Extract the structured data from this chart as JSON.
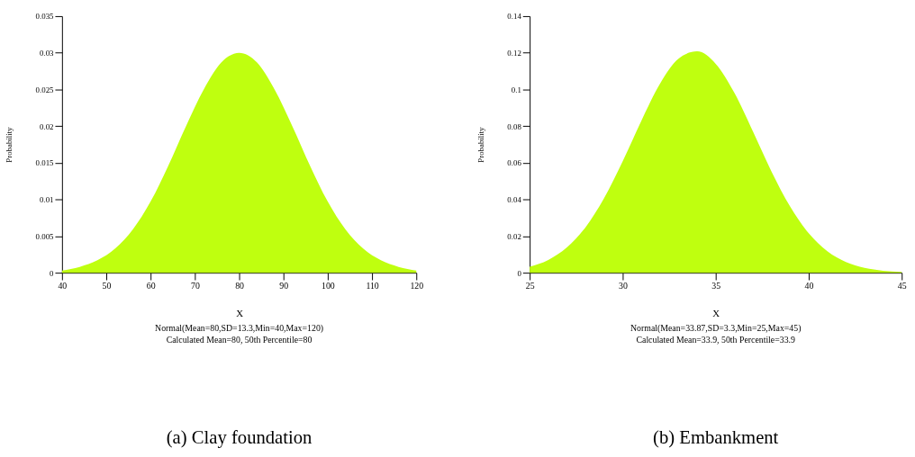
{
  "chart_data": [
    {
      "type": "area",
      "title": "(a)  Clay foundation",
      "xlabel": "X",
      "ylabel": "Probability",
      "annotations": [
        "Normal(Mean=80,SD=13.3,Min=40,Max=120)",
        "Calculated Mean=80, 50th Percentile=80"
      ],
      "x": [
        40,
        44,
        48,
        52,
        56,
        60,
        64,
        68,
        72,
        76,
        80,
        84,
        88,
        92,
        96,
        100,
        104,
        108,
        112,
        116,
        120
      ],
      "series": [
        {
          "color": "#bfff0f",
          "values": [
            0.0003,
            0.0008,
            0.0017,
            0.0033,
            0.0059,
            0.0097,
            0.0146,
            0.02,
            0.025,
            0.0287,
            0.03,
            0.0287,
            0.025,
            0.02,
            0.0146,
            0.0097,
            0.0059,
            0.0033,
            0.0017,
            0.0008,
            0.0003
          ]
        }
      ],
      "xlim": [
        40,
        120
      ],
      "xticks": [
        40,
        50,
        60,
        70,
        80,
        90,
        100,
        110,
        120
      ],
      "ylim": [
        0,
        0.035
      ],
      "yticks": [
        0,
        0.005,
        0.01,
        0.015,
        0.02,
        0.025,
        0.03,
        0.035
      ],
      "grid": false
    },
    {
      "type": "area",
      "title": "(b) Embankment",
      "xlabel": "X",
      "ylabel": "Probability",
      "annotations": [
        "Normal(Mean=33.87,SD=3.3,Min=25,Max=45)",
        "Calculated Mean=33.9, 50th Percentile=33.9"
      ],
      "x": [
        25,
        26,
        27,
        28,
        29,
        30,
        31,
        32,
        33,
        34,
        35,
        36,
        37,
        38,
        39,
        40,
        41,
        42,
        43,
        44,
        45
      ],
      "series": [
        {
          "color": "#bfff0f",
          "values": [
            0.0033,
            0.007,
            0.0138,
            0.0248,
            0.0407,
            0.0608,
            0.0828,
            0.103,
            0.1168,
            0.1208,
            0.114,
            0.0982,
            0.0771,
            0.0552,
            0.0361,
            0.0215,
            0.0117,
            0.0058,
            0.0026,
            0.0011,
            0.0004
          ]
        }
      ],
      "xlim": [
        25,
        45
      ],
      "xticks": [
        25,
        30,
        35,
        40,
        45
      ],
      "ylim": [
        0,
        0.14
      ],
      "yticks": [
        0,
        0.02,
        0.04,
        0.06,
        0.08,
        0.1,
        0.12,
        0.14
      ],
      "grid": false
    }
  ]
}
